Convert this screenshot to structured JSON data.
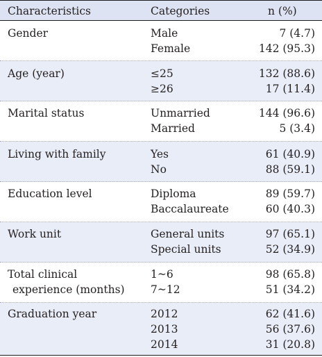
{
  "header": {
    "characteristics": "Characteristics",
    "categories": "Categories",
    "n_pct": "n (%)"
  },
  "groups": [
    {
      "label": [
        "Gender"
      ],
      "rows": [
        {
          "category": "Male",
          "value": "7 (4.7)"
        },
        {
          "category": "Female",
          "value": "142 (95.3)"
        }
      ]
    },
    {
      "label": [
        "Age (year)"
      ],
      "rows": [
        {
          "category": "≤25",
          "value": "132 (88.6)"
        },
        {
          "category": "≥26",
          "value": "17 (11.4)"
        }
      ]
    },
    {
      "label": [
        "Marital status"
      ],
      "rows": [
        {
          "category": "Unmarried",
          "value": "144 (96.6)"
        },
        {
          "category": "Married",
          "value": "5 (3.4)"
        }
      ]
    },
    {
      "label": [
        "Living with family"
      ],
      "rows": [
        {
          "category": "Yes",
          "value": "61 (40.9)"
        },
        {
          "category": "No",
          "value": "88 (59.1)"
        }
      ]
    },
    {
      "label": [
        "Education level"
      ],
      "rows": [
        {
          "category": "Diploma",
          "value": "89 (59.7)"
        },
        {
          "category": "Baccalaureate",
          "value": "60 (40.3)"
        }
      ]
    },
    {
      "label": [
        "Work unit"
      ],
      "rows": [
        {
          "category": "General units",
          "value": "97 (65.1)"
        },
        {
          "category": "Special units",
          "value": "52 (34.9)"
        }
      ]
    },
    {
      "label": [
        "Total clinical",
        "experience (months)"
      ],
      "rows": [
        {
          "category": "1~6",
          "value": "98 (65.8)"
        },
        {
          "category": "7~12",
          "value": "51 (34.2)"
        }
      ]
    },
    {
      "label": [
        "Graduation year"
      ],
      "rows": [
        {
          "category": "2012",
          "value": "62 (41.6)"
        },
        {
          "category": "2013",
          "value": "56 (37.6)"
        },
        {
          "category": "2014",
          "value": "31 (20.8)"
        }
      ]
    }
  ]
}
